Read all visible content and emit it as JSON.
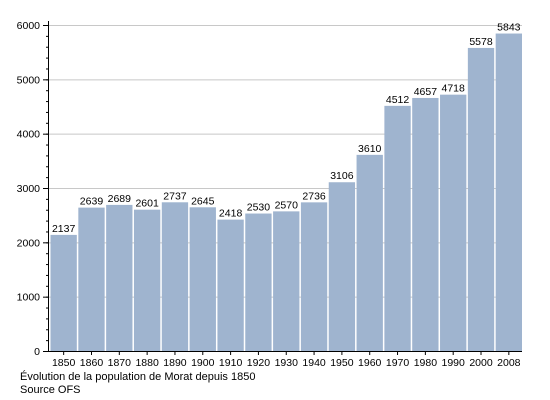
{
  "caption": {
    "title": "Évolution de la population de Morat depuis 1850",
    "source": "Source OFS"
  },
  "colors": {
    "bar": "#9fb4cf",
    "grid": "#c8c8c8",
    "axis": "#000000",
    "text": "#000000"
  },
  "chart_data": {
    "type": "bar",
    "title": "",
    "xlabel": "",
    "ylabel": "",
    "categories": [
      "1850",
      "1860",
      "1870",
      "1880",
      "1890",
      "1900",
      "1910",
      "1920",
      "1930",
      "1940",
      "1950",
      "1960",
      "1970",
      "1980",
      "1990",
      "2000",
      "2008"
    ],
    "values": [
      2137,
      2639,
      2689,
      2601,
      2737,
      2645,
      2418,
      2530,
      2570,
      2736,
      3106,
      3610,
      4512,
      4657,
      4718,
      5578,
      5843
    ],
    "ylim": [
      0,
      6000
    ],
    "yticks": [
      0,
      1000,
      2000,
      3000,
      4000,
      5000,
      6000
    ],
    "ytick_labels": [
      "0",
      "1000",
      "2000",
      "3000",
      "4000",
      "5000",
      "6000"
    ],
    "minor_y_step": 200,
    "grid": true,
    "legend": "none",
    "data_labels": true
  }
}
